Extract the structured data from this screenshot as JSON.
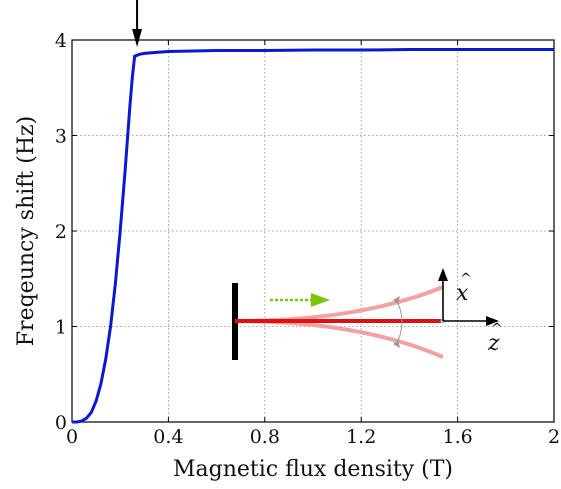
{
  "chart_data": {
    "type": "line",
    "xlabel": "Magnetic flux density (T)",
    "ylabel": "Freqeuncy shift (Hz)",
    "xlim": [
      0,
      2
    ],
    "ylim": [
      0,
      4
    ],
    "x_ticks": [
      0,
      0.4,
      0.8,
      1.2,
      1.6,
      2
    ],
    "x_tick_labels": [
      "0",
      "0.4",
      "0.8",
      "1.2",
      "1.6",
      "2"
    ],
    "y_ticks": [
      0,
      1,
      2,
      3,
      4
    ],
    "y_tick_labels": [
      "0",
      "1",
      "2",
      "3",
      "4"
    ],
    "grid": true,
    "series": [
      {
        "color": "#0a18d6",
        "x": [
          0,
          0.02,
          0.04,
          0.06,
          0.08,
          0.1,
          0.12,
          0.14,
          0.16,
          0.18,
          0.2,
          0.22,
          0.24,
          0.25,
          0.26,
          0.28,
          0.3,
          0.35,
          0.4,
          0.5,
          0.6,
          0.8,
          1.0,
          1.2,
          1.4,
          1.6,
          1.8,
          2.0
        ],
        "y": [
          0,
          0.0,
          0.01,
          0.04,
          0.1,
          0.22,
          0.4,
          0.66,
          1.0,
          1.45,
          2.0,
          2.62,
          3.3,
          3.6,
          3.83,
          3.85,
          3.86,
          3.87,
          3.88,
          3.885,
          3.89,
          3.89,
          3.895,
          3.895,
          3.9,
          3.9,
          3.9,
          3.9
        ]
      }
    ],
    "annotation_arrow_x": 0.27,
    "inset": {
      "labels": [
        "x",
        "z"
      ],
      "colors": {
        "clamp": "#000000",
        "beam": "#e01010",
        "deflected": "#f4a0a0",
        "tip": "#80e0f0",
        "arrow": "#7ac70c",
        "arc": "#999999"
      }
    }
  }
}
